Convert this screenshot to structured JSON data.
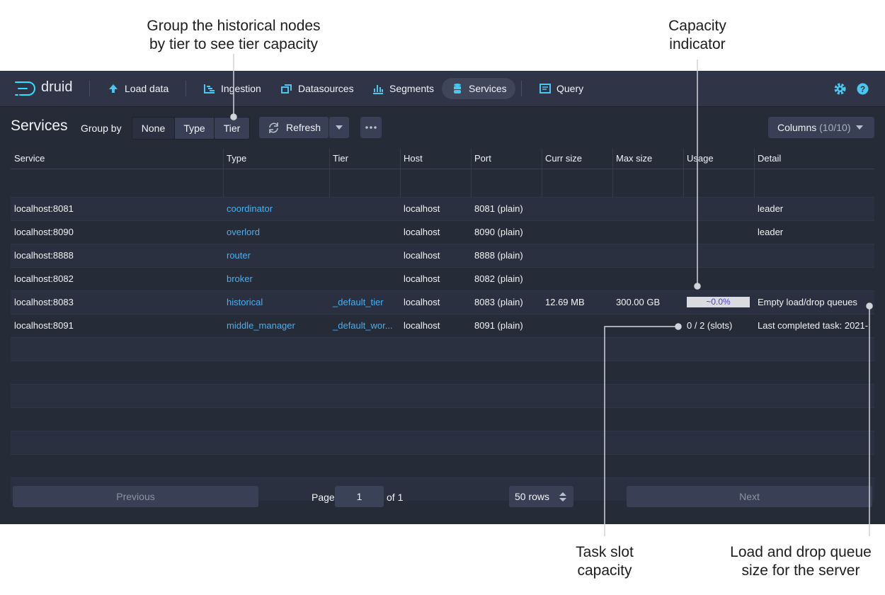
{
  "annotations": [
    {
      "lines": [
        "Group the historical nodes",
        "by tier to see tier capacity"
      ]
    },
    {
      "lines": [
        "Capacity",
        "indicator"
      ]
    },
    {
      "lines": [
        "Task slot",
        "capacity"
      ]
    },
    {
      "lines": [
        "Load and drop queue",
        "size for the server"
      ]
    }
  ],
  "nav": {
    "logo": "druid",
    "items": [
      "Load data",
      "Ingestion",
      "Datasources",
      "Segments",
      "Services",
      "Query"
    ]
  },
  "toolbar": {
    "title": "Services",
    "group_by_label": "Group by",
    "group_options": [
      "None",
      "Type",
      "Tier"
    ],
    "refresh": "Refresh",
    "columns_label": "Columns",
    "columns_count": "(10/10)"
  },
  "table": {
    "columns": [
      "Service",
      "Type",
      "Tier",
      "Host",
      "Port",
      "Curr size",
      "Max size",
      "Usage",
      "Detail"
    ],
    "rows": [
      [
        "localhost:8081",
        "coordinator",
        null,
        "localhost",
        "8081 (plain)",
        null,
        null,
        null,
        "leader"
      ],
      [
        "localhost:8090",
        "overlord",
        null,
        "localhost",
        "8090 (plain)",
        null,
        null,
        null,
        "leader"
      ],
      [
        "localhost:8888",
        "router",
        null,
        "localhost",
        "8888 (plain)",
        null,
        null,
        null,
        null
      ],
      [
        "localhost:8082",
        "broker",
        null,
        "localhost",
        "8082 (plain)",
        null,
        null,
        null,
        null
      ],
      [
        "localhost:8083",
        "historical",
        "_default_tier",
        "localhost",
        "8083 (plain)",
        "12.69 MB",
        "300.00 GB",
        "~0.0%",
        "Empty load/drop queues"
      ],
      [
        "localhost:8091",
        "middle_manager",
        "_default_wor...",
        "localhost",
        "8091 (plain)",
        null,
        null,
        "0 / 2 (slots)",
        "Last completed task: 2021-"
      ]
    ]
  },
  "pagination": {
    "previous": "Previous",
    "page_label": "Page",
    "page": "1",
    "of": "of 1",
    "rows": "50 rows",
    "next": "Next"
  }
}
